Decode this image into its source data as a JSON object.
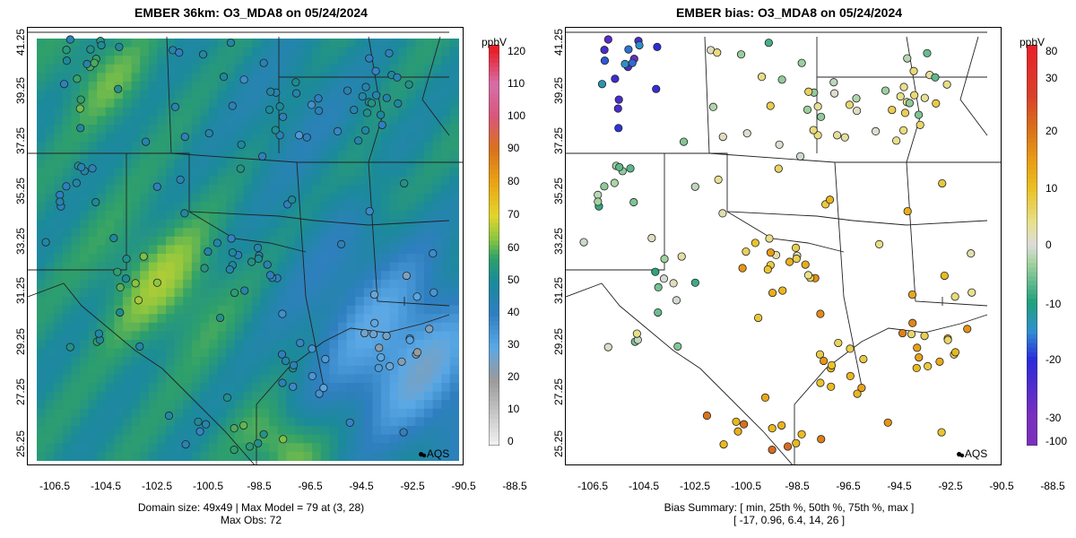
{
  "left_panel": {
    "title": "EMBER 36km: O3_MDA8 on 05/24/2024",
    "caption_line1": "Domain size: 49x49 | Max Model = 79 at (3, 28)",
    "caption_line2": "Max Obs: 72",
    "colorbar": {
      "unit": "ppbV",
      "ticks": [
        "0",
        "10",
        "20",
        "30",
        "40",
        "50",
        "60",
        "70",
        "80",
        "90",
        "100",
        "110",
        "120"
      ],
      "range": [
        0,
        122
      ]
    },
    "legend_label": "AQS"
  },
  "right_panel": {
    "title": "EMBER bias: O3_MDA8 on 05/24/2024",
    "caption_line1": "Bias Summary: [ min, 25th %, 50th %, 75th %, max ]",
    "caption_line2": "[ -17,   0.96,   6.4,   14,   26 ]",
    "colorbar": {
      "unit": "ppbV",
      "ticks": [
        "-100",
        "-30",
        "-20",
        "-10",
        "0",
        "10",
        "20",
        "30",
        "80"
      ],
      "range": [
        -100,
        80
      ]
    },
    "legend_label": "AQS"
  },
  "axes": {
    "x_ticks": [
      "-106.5",
      "-104.5",
      "-102.5",
      "-100.5",
      "-98.5",
      "-96.5",
      "-94.5",
      "-92.5",
      "-90.5",
      "-88.5"
    ],
    "y_ticks": [
      "41.25",
      "39.25",
      "37.25",
      "35.25",
      "33.25",
      "31.25",
      "29.25",
      "27.25",
      "25.25"
    ]
  },
  "icons": {
    "station": "aqs-marker-icon"
  }
}
